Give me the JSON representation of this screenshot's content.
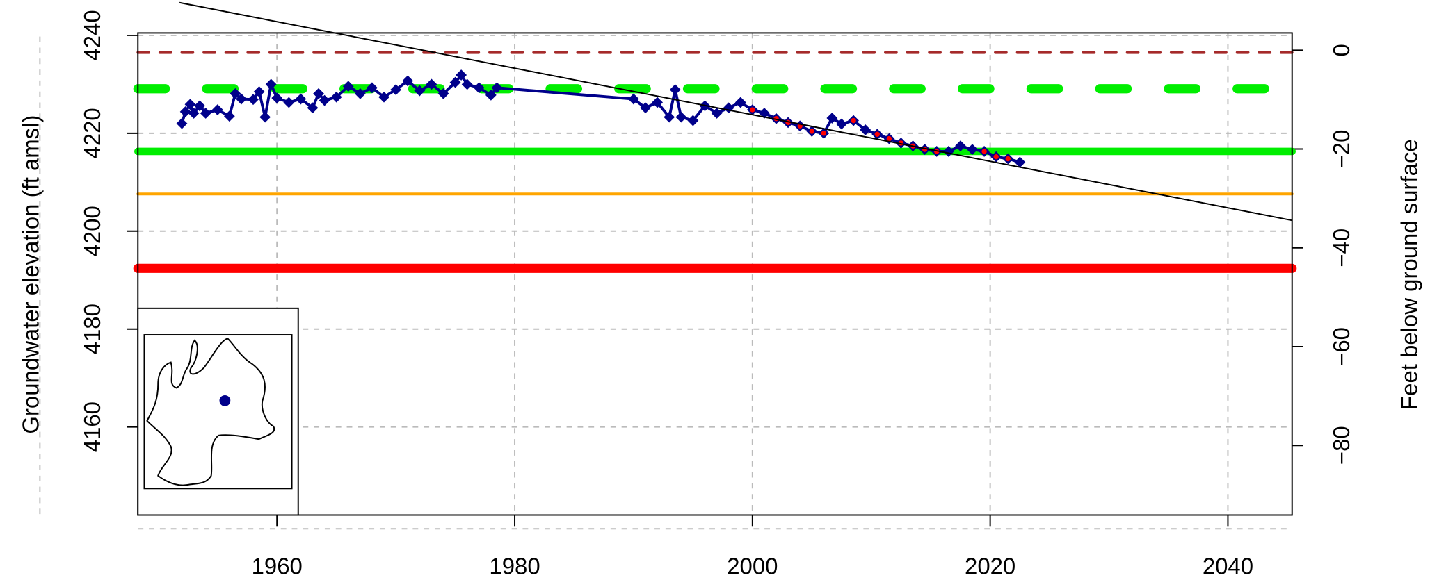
{
  "chart_data": {
    "type": "line",
    "y_label": "Groundwater elevation (ft amsl)",
    "y2_label": "Feet below ground surface",
    "xlim": [
      1948.3,
      2045.4
    ],
    "xticks": [
      1960,
      1980,
      2000,
      2020,
      2040
    ],
    "ylim": [
      4142,
      4240.5
    ],
    "yticks": [
      4160,
      4180,
      4200,
      4220,
      4240
    ],
    "y2lim": [
      -94.1,
      3.5
    ],
    "y2ticks": [
      0,
      {
        "value": -20,
        "label": "−20"
      },
      {
        "value": -40,
        "label": "−40"
      },
      {
        "value": -60,
        "label": "−60"
      },
      {
        "value": -80,
        "label": "−80"
      }
    ],
    "grid": true,
    "reference_lines": [
      {
        "value": 4236.5,
        "color": "#a52a2a",
        "style": "dashed"
      },
      {
        "value": 4229.1,
        "color": "#00ee00",
        "style": "dashed"
      },
      {
        "value": 4216.3,
        "color": "#00ee00",
        "style": "solid"
      },
      {
        "value": 4207.6,
        "color": "#ffa500",
        "style": "solid"
      },
      {
        "value": 4192.4,
        "color": "#ff0000",
        "style": "solid"
      }
    ],
    "trend": {
      "color": "#000000",
      "x": [
        1951.8,
        2045.4
      ],
      "values": [
        4246.7,
        4202.2
      ]
    },
    "series": [
      {
        "color": "#00008b",
        "x": [
          1952,
          1952.3,
          1952.7,
          1953,
          1953.5,
          1954,
          1955,
          1956,
          1956.5,
          1957,
          1958,
          1958.5,
          1959,
          1959.5,
          1960,
          1961,
          1962,
          1963,
          1963.5,
          1964,
          1965,
          1966,
          1967,
          1968,
          1969,
          1970,
          1971,
          1972,
          1973,
          1974,
          1975,
          1975.5,
          1976,
          1977,
          1978,
          1978.5,
          1990,
          1991,
          1992,
          1993,
          1993.5,
          1994,
          1995,
          1996,
          1997,
          1998,
          1999,
          2000,
          2001,
          2002,
          2003,
          2004,
          2005,
          2006,
          2006.7,
          2007.5,
          2008.5,
          2009.5,
          2010.5,
          2011.5,
          2012.5,
          2013.5,
          2014.5,
          2015.5,
          2016.5,
          2017.5,
          2018.5,
          2019.5,
          2020.5,
          2021.5,
          2022.5
        ],
        "values": [
          4222.0,
          4224.4,
          4225.9,
          4224.1,
          4225.6,
          4224.1,
          4224.8,
          4223.5,
          4228.1,
          4227.0,
          4226.9,
          4228.5,
          4223.3,
          4230.0,
          4227.2,
          4226.3,
          4227.0,
          4225.2,
          4228.1,
          4226.7,
          4227.4,
          4229.6,
          4228.1,
          4229.3,
          4227.4,
          4228.9,
          4230.7,
          4228.7,
          4230.0,
          4228.1,
          4230.4,
          4231.9,
          4230.0,
          4229.3,
          4227.8,
          4229.3,
          4227.0,
          4225.2,
          4226.3,
          4223.3,
          4228.9,
          4223.3,
          4222.6,
          4225.6,
          4224.1,
          4225.2,
          4226.3,
          4224.8,
          4224.1,
          4223.0,
          4222.2,
          4221.5,
          4220.4,
          4220.0,
          4223.1,
          4221.9,
          4222.6,
          4220.7,
          4219.8,
          4218.9,
          4218.0,
          4217.4,
          4216.7,
          4216.3,
          4216.3,
          4217.4,
          4216.7,
          4216.3,
          4215.2,
          4214.8,
          4214.1
        ]
      },
      {
        "color": "#ff0000",
        "x": [
          2000,
          2002,
          2003,
          2004,
          2005,
          2006,
          2008.5,
          2010.5,
          2011.5,
          2012.5,
          2013.5,
          2014.5,
          2015.5,
          2019.5,
          2020.5,
          2021.5
        ],
        "values": [
          4224.8,
          4223.0,
          4222.2,
          4221.5,
          4220.4,
          4220.0,
          4222.6,
          4219.8,
          4218.9,
          4218.0,
          4217.4,
          4216.7,
          4216.3,
          4216.3,
          4215.2,
          4214.8
        ]
      }
    ]
  }
}
